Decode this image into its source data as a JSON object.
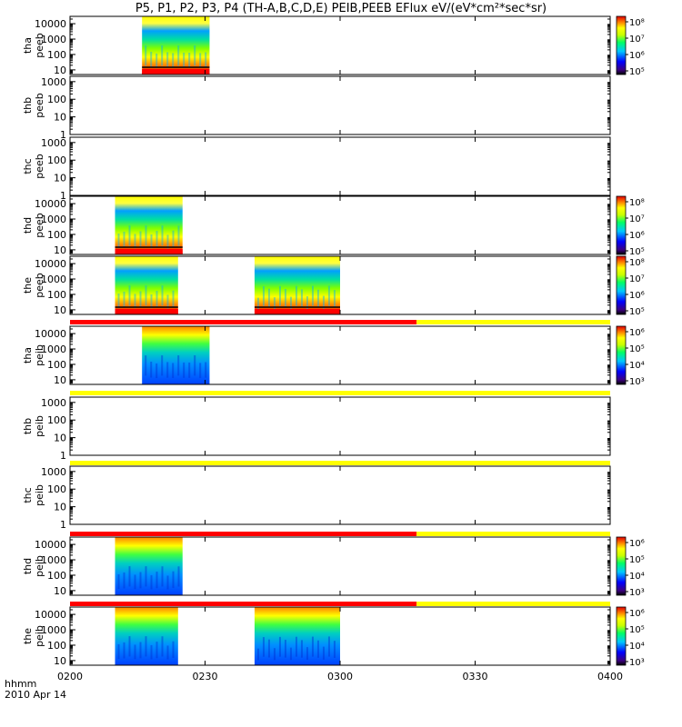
{
  "chart_data": {
    "type": "heatmap",
    "title": "P5, P1, P2, P3, P4 (TH-A,B,C,D,E) PEIB,PEEB EFlux eV/(eV*cm²*sec*sr)",
    "x_axis": {
      "label": "hhmm",
      "date": "2010 Apr 14",
      "ticks": [
        "0200",
        "0230",
        "0300",
        "0330",
        "0400"
      ],
      "range_minutes_after_0200": [
        0,
        120
      ]
    },
    "panels": [
      {
        "probe": "tha",
        "product": "peeb",
        "ylabel": [
          "tha",
          "peeb"
        ],
        "yticks": [
          "10",
          "100",
          "1000",
          "10000"
        ],
        "yrange": [
          5,
          30000
        ],
        "data_segments": [
          {
            "start": "0216",
            "end": "0231"
          }
        ],
        "floor_band": "red",
        "colorbar": {
          "min_exp": 5,
          "max_exp": 8,
          "labels": [
            "10⁵",
            "10⁶",
            "10⁷",
            "10⁸"
          ]
        }
      },
      {
        "probe": "thb",
        "product": "peeb",
        "ylabel": [
          "thb",
          "peeb"
        ],
        "yticks": [
          "1",
          "10",
          "100",
          "1000"
        ],
        "yrange": [
          1,
          2000
        ],
        "data_segments": [],
        "colorbar": null
      },
      {
        "probe": "thc",
        "product": "peeb",
        "ylabel": [
          "thc",
          "peeb"
        ],
        "yticks": [
          "1",
          "10",
          "100",
          "1000"
        ],
        "yrange": [
          1,
          2000
        ],
        "data_segments": [],
        "colorbar": null
      },
      {
        "probe": "thd",
        "product": "peeb",
        "ylabel": [
          "thd",
          "peeb"
        ],
        "yticks": [
          "10",
          "100",
          "1000",
          "10000"
        ],
        "yrange": [
          5,
          30000
        ],
        "data_segments": [
          {
            "start": "0210",
            "end": "0225"
          }
        ],
        "floor_band": "red",
        "colorbar": {
          "min_exp": 5,
          "max_exp": 8,
          "labels": [
            "10⁵",
            "10⁶",
            "10⁷",
            "10⁸"
          ]
        }
      },
      {
        "probe": "the",
        "product": "peeb",
        "ylabel": [
          "the",
          "peeb"
        ],
        "yticks": [
          "10",
          "100",
          "1000",
          "10000"
        ],
        "yrange": [
          5,
          30000
        ],
        "data_segments": [
          {
            "start": "0210",
            "end": "0224"
          },
          {
            "start": "0241",
            "end": "0300"
          }
        ],
        "floor_band": "red",
        "colorbar": {
          "min_exp": 5,
          "max_exp": 8,
          "labels": [
            "10⁵",
            "10⁶",
            "10⁷",
            "10⁸"
          ]
        }
      },
      {
        "probe": "tha",
        "product": "peib",
        "ylabel": [
          "tha",
          "peib"
        ],
        "yticks": [
          "10",
          "100",
          "1000",
          "10000"
        ],
        "yrange": [
          5,
          30000
        ],
        "data_segments": [
          {
            "start": "0216",
            "end": "0231"
          }
        ],
        "colorbar": {
          "min_exp": 3,
          "max_exp": 6,
          "labels": [
            "10³",
            "10⁴",
            "10⁵",
            "10⁶"
          ]
        }
      },
      {
        "probe": "thb",
        "product": "peib",
        "ylabel": [
          "thb",
          "peib"
        ],
        "yticks": [
          "1",
          "10",
          "100",
          "1000"
        ],
        "yrange": [
          1,
          2000
        ],
        "data_segments": [],
        "colorbar": null
      },
      {
        "probe": "thc",
        "product": "peib",
        "ylabel": [
          "thc",
          "peib"
        ],
        "yticks": [
          "1",
          "10",
          "100",
          "1000"
        ],
        "yrange": [
          1,
          2000
        ],
        "data_segments": [],
        "colorbar": null
      },
      {
        "probe": "thd",
        "product": "peib",
        "ylabel": [
          "thd",
          "peib"
        ],
        "yticks": [
          "10",
          "100",
          "1000",
          "10000"
        ],
        "yrange": [
          5,
          30000
        ],
        "data_segments": [
          {
            "start": "0210",
            "end": "0225"
          }
        ],
        "colorbar": {
          "min_exp": 3,
          "max_exp": 6,
          "labels": [
            "10³",
            "10⁴",
            "10⁵",
            "10⁶"
          ]
        }
      },
      {
        "probe": "the",
        "product": "peib",
        "ylabel": [
          "the",
          "peib"
        ],
        "yticks": [
          "10",
          "100",
          "1000",
          "10000"
        ],
        "yrange": [
          5,
          30000
        ],
        "data_segments": [
          {
            "start": "0210",
            "end": "0224"
          },
          {
            "start": "0241",
            "end": "0300"
          }
        ],
        "colorbar": {
          "min_exp": 3,
          "max_exp": 6,
          "labels": [
            "10³",
            "10⁴",
            "10⁵",
            "10⁶"
          ]
        }
      }
    ],
    "status_bars": [
      {
        "after_panel": 5,
        "segments": [
          {
            "start": "0200",
            "end": "0317",
            "color": "red"
          },
          {
            "start": "0317",
            "end": "0400",
            "color": "yellow"
          }
        ]
      },
      {
        "after_panel": 6,
        "segments": [
          {
            "start": "0200",
            "end": "0400",
            "color": "yellow"
          }
        ]
      },
      {
        "after_panel": 7,
        "segments": [
          {
            "start": "0200",
            "end": "0400",
            "color": "yellow"
          }
        ]
      },
      {
        "after_panel": 8,
        "segments": [
          {
            "start": "0200",
            "end": "0317",
            "color": "red"
          },
          {
            "start": "0317",
            "end": "0400",
            "color": "yellow"
          }
        ]
      },
      {
        "after_panel": 9,
        "segments": [
          {
            "start": "0200",
            "end": "0317",
            "color": "red"
          },
          {
            "start": "0317",
            "end": "0400",
            "color": "yellow"
          }
        ]
      }
    ],
    "colors": {
      "status_red": "#ff0000",
      "status_yellow": "#ffff00",
      "axis": "#000000"
    }
  }
}
